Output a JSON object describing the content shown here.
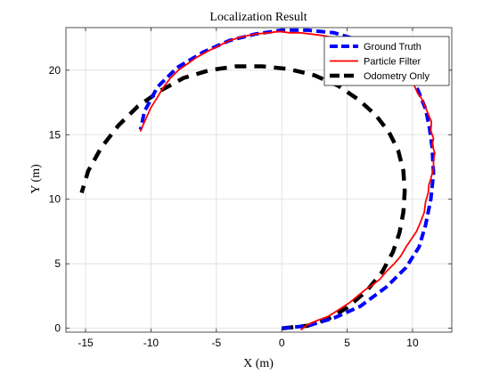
{
  "chart_data": {
    "type": "line",
    "title": "Localization Result",
    "xlabel": "X (m)",
    "ylabel": "Y (m)",
    "xlim": [
      -16.5,
      13
    ],
    "ylim": [
      -0.3,
      23.3
    ],
    "xticks": [
      -15,
      -10,
      -5,
      0,
      5,
      10
    ],
    "yticks": [
      0,
      5,
      10,
      15,
      20
    ],
    "grid": true,
    "legend_position": "top-right",
    "series": [
      {
        "name": "Ground Truth",
        "color": "#0000ff",
        "style": "dashed",
        "x": [
          0,
          2,
          4,
          6,
          8,
          9.5,
          10.5,
          11,
          11.4,
          11.6,
          11.5,
          11.3,
          11,
          10.4,
          9.5,
          8,
          6,
          4,
          2,
          0,
          -2,
          -4,
          -6,
          -8,
          -9.5,
          -10.5,
          -10.8
        ],
        "y": [
          0,
          0.2,
          0.8,
          1.7,
          3.2,
          4.7,
          6.3,
          8,
          10,
          12,
          14,
          15.5,
          17,
          18.5,
          19.8,
          21.2,
          22.3,
          22.9,
          23.1,
          23.1,
          22.8,
          22.3,
          21.4,
          20.2,
          18.7,
          16.8,
          15.4
        ]
      },
      {
        "name": "Particle Filter",
        "color": "#ff0000",
        "style": "solid",
        "x": [
          1.5,
          2,
          2.7,
          3.5,
          4,
          4.6,
          5.2,
          5.8,
          6.4,
          7,
          7.5,
          8,
          8.6,
          9.1,
          9.5,
          9.9,
          10.3,
          10.6,
          10.9,
          11,
          11.2,
          11.25,
          11.4,
          11.5,
          11.6,
          11.6,
          11.7,
          11.5,
          11.6,
          11.4,
          11.45,
          11.2,
          11,
          10.7,
          10.4,
          10.1,
          9.6,
          9.4,
          8.9,
          8.3,
          7.8,
          7.2,
          6.5,
          5.8,
          5,
          4.4,
          3.6,
          3,
          2.2,
          1.4,
          0.6,
          -0.2,
          -1,
          -2,
          -3,
          -4,
          -4.8,
          -5.6,
          -6.5,
          -7.2,
          -7.9,
          -8.5,
          -9.1,
          -9.5,
          -10,
          -10.4,
          -10.8
        ],
        "y": [
          -0.1,
          0.3,
          0.6,
          0.9,
          1.2,
          1.6,
          2,
          2.5,
          3,
          3.4,
          3.8,
          4.4,
          5,
          5.6,
          6.3,
          6.9,
          7.5,
          8.2,
          9,
          9.8,
          10.5,
          11.1,
          11.6,
          12,
          12.4,
          13,
          13.6,
          14.2,
          14.7,
          15.3,
          16,
          16.6,
          17.1,
          17.8,
          18.2,
          18.9,
          19.5,
          19.9,
          20.5,
          21,
          21.4,
          21.7,
          22,
          22.2,
          22.4,
          22.5,
          22.6,
          22.7,
          22.8,
          22.9,
          22.9,
          23,
          22.9,
          22.8,
          22.6,
          22.3,
          21.9,
          21.5,
          21,
          20.5,
          20,
          19.4,
          18.6,
          17.9,
          17.1,
          16.2,
          15.3
        ]
      },
      {
        "name": "Odometry Only",
        "color": "#000000",
        "style": "dashed",
        "x": [
          0,
          2,
          3.5,
          5,
          6.5,
          7.7,
          8.5,
          9,
          9.3,
          9.4,
          9.3,
          8.9,
          8.2,
          7.2,
          5.9,
          4.3,
          2.5,
          0.5,
          -1.5,
          -3.5,
          -5.5,
          -7.5,
          -9.3,
          -11,
          -12.5,
          -13.8,
          -14.8,
          -15.3
        ],
        "y": [
          0,
          0.2,
          0.7,
          1.6,
          2.9,
          4.4,
          5.9,
          7.4,
          9,
          10.6,
          12.2,
          13.8,
          15.2,
          16.5,
          17.7,
          18.8,
          19.6,
          20.1,
          20.3,
          20.3,
          20,
          19.4,
          18.4,
          17.2,
          15.7,
          14,
          12.2,
          10.5
        ]
      }
    ]
  }
}
